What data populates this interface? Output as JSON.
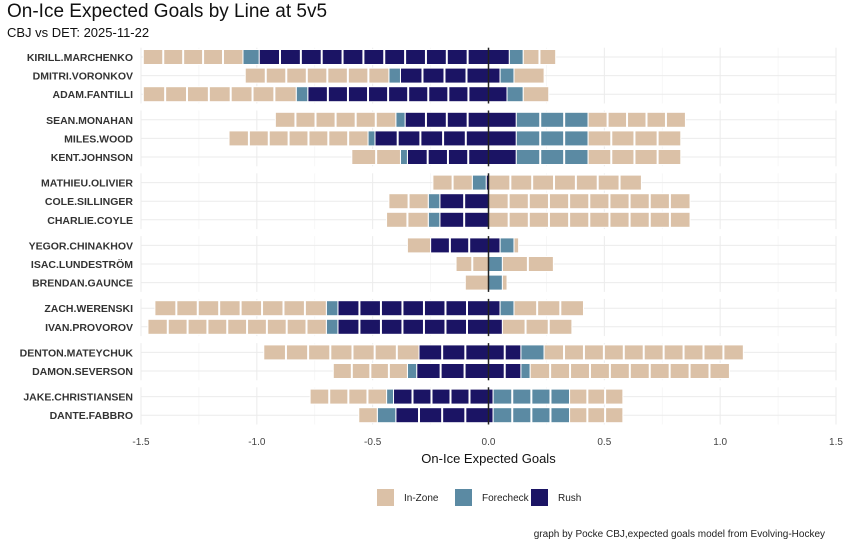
{
  "chart_data": {
    "type": "bar",
    "orientation": "horizontal-diverging-stacked",
    "title": "On-Ice Expected Goals by Line at 5v5",
    "subtitle": "CBJ vs DET: 2025-11-22",
    "xlabel": "On-Ice Expected Goals",
    "ylabel": "",
    "xlim": [
      -1.5,
      1.5
    ],
    "xticks": [
      "-1.5",
      "-1.0",
      "-0.5",
      "0.0",
      "0.5",
      "1.0",
      "1.5"
    ],
    "xtick_values": [
      -1.5,
      -1.0,
      -0.5,
      0,
      0.5,
      1.0,
      1.5
    ],
    "grid": true,
    "legend_position": "bottom",
    "legend": [
      {
        "key": "inzone",
        "label": "In-Zone",
        "color": "#dbc1a7"
      },
      {
        "key": "forecheck",
        "label": "Forecheck",
        "color": "#5b8aa3"
      },
      {
        "key": "rush",
        "label": "Rush",
        "color": "#1b1464"
      }
    ],
    "caption": "graph by Pocke CBJ,expected goals model from Evolving-Hockey",
    "lines": [
      [
        {
          "player": "KIRILL.MARCHENKO",
          "against": {
            "rush": 0.99,
            "forecheck": 0.07,
            "inzone": 0.43
          },
          "for": {
            "rush": 0.09,
            "forecheck": 0.06,
            "inzone": 0.14
          }
        },
        {
          "player": "DMITRI.VORONKOV",
          "against": {
            "rush": 0.38,
            "forecheck": 0.05,
            "inzone": 0.62
          },
          "for": {
            "rush": 0.05,
            "forecheck": 0.06,
            "inzone": 0.13
          }
        },
        {
          "player": "ADAM.FANTILLI",
          "against": {
            "rush": 0.78,
            "forecheck": 0.05,
            "inzone": 0.66
          },
          "for": {
            "rush": 0.08,
            "forecheck": 0.07,
            "inzone": 0.11
          }
        }
      ],
      [
        {
          "player": "SEAN.MONAHAN",
          "against": {
            "rush": 0.36,
            "forecheck": 0.04,
            "inzone": 0.52
          },
          "for": {
            "rush": 0.12,
            "forecheck": 0.31,
            "inzone": 0.42
          }
        },
        {
          "player": "MILES.WOOD",
          "against": {
            "rush": 0.49,
            "forecheck": 0.03,
            "inzone": 0.6
          },
          "for": {
            "rush": 0.12,
            "forecheck": 0.31,
            "inzone": 0.4
          }
        },
        {
          "player": "KENT.JOHNSON",
          "against": {
            "rush": 0.35,
            "forecheck": 0.03,
            "inzone": 0.21
          },
          "for": {
            "rush": 0.12,
            "forecheck": 0.31,
            "inzone": 0.4
          }
        }
      ],
      [
        {
          "player": "MATHIEU.OLIVIER",
          "against": {
            "rush": 0.01,
            "forecheck": 0.06,
            "inzone": 0.17
          },
          "for": {
            "rush": 0,
            "forecheck": 0,
            "inzone": 0.66
          }
        },
        {
          "player": "COLE.SILLINGER",
          "against": {
            "rush": 0.21,
            "forecheck": 0.05,
            "inzone": 0.17
          },
          "for": {
            "rush": 0,
            "forecheck": 0,
            "inzone": 0.87
          }
        },
        {
          "player": "CHARLIE.COYLE",
          "against": {
            "rush": 0.21,
            "forecheck": 0.05,
            "inzone": 0.18
          },
          "for": {
            "rush": 0,
            "forecheck": 0,
            "inzone": 0.87
          }
        }
      ],
      [
        {
          "player": "YEGOR.CHINAKHOV",
          "against": {
            "rush": 0.25,
            "forecheck": 0,
            "inzone": 0.1
          },
          "for": {
            "rush": 0.05,
            "forecheck": 0.06,
            "inzone": 0.02
          }
        },
        {
          "player": "ISAC.LUNDESTRÖM",
          "against": {
            "rush": 0,
            "forecheck": 0,
            "inzone": 0.14
          },
          "for": {
            "rush": 0,
            "forecheck": 0.06,
            "inzone": 0.22
          }
        },
        {
          "player": "BRENDAN.GAUNCE",
          "against": {
            "rush": 0,
            "forecheck": 0,
            "inzone": 0.1
          },
          "for": {
            "rush": 0,
            "forecheck": 0.06,
            "inzone": 0.02
          }
        }
      ],
      [
        {
          "player": "ZACH.WERENSKI",
          "against": {
            "rush": 0.65,
            "forecheck": 0.05,
            "inzone": 0.74
          },
          "for": {
            "rush": 0.05,
            "forecheck": 0.06,
            "inzone": 0.3
          }
        },
        {
          "player": "IVAN.PROVOROV",
          "against": {
            "rush": 0.65,
            "forecheck": 0.05,
            "inzone": 0.77
          },
          "for": {
            "rush": 0.06,
            "forecheck": 0,
            "inzone": 0.3
          }
        }
      ],
      [
        {
          "player": "DENTON.MATEYCHUK",
          "against": {
            "rush": 0.3,
            "forecheck": 0,
            "inzone": 0.67
          },
          "for": {
            "rush": 0.14,
            "forecheck": 0.1,
            "inzone": 0.86
          }
        },
        {
          "player": "DAMON.SEVERSON",
          "against": {
            "rush": 0.31,
            "forecheck": 0.04,
            "inzone": 0.32
          },
          "for": {
            "rush": 0.14,
            "forecheck": 0.04,
            "inzone": 0.86
          }
        }
      ],
      [
        {
          "player": "JAKE.CHRISTIANSEN",
          "against": {
            "rush": 0.41,
            "forecheck": 0.03,
            "inzone": 0.33
          },
          "for": {
            "rush": 0.02,
            "forecheck": 0.33,
            "inzone": 0.23
          }
        },
        {
          "player": "DANTE.FABBRO",
          "against": {
            "rush": 0.4,
            "forecheck": 0.08,
            "inzone": 0.08
          },
          "for": {
            "rush": 0.02,
            "forecheck": 0.33,
            "inzone": 0.23
          }
        }
      ]
    ]
  }
}
